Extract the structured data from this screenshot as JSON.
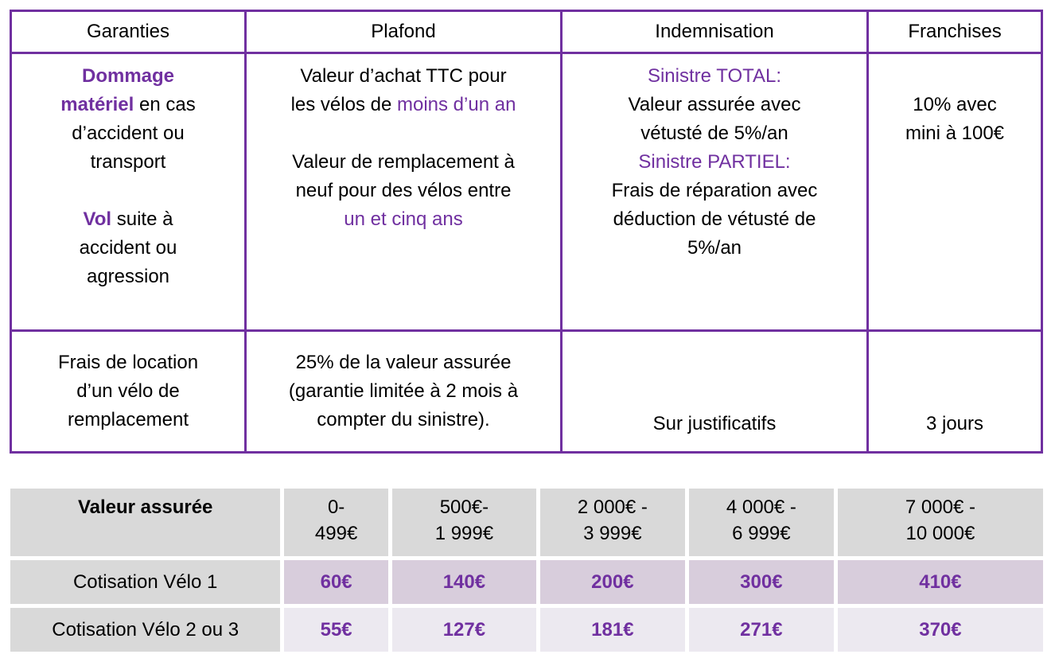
{
  "colors": {
    "purple": "#7030A0",
    "cell_gray": "#D9D9D9",
    "row1_lavender": "#D8CDDC",
    "row2_lavender": "#ECE9F0"
  },
  "guarantee_table": {
    "headers": [
      "Garanties",
      "Plafond",
      "Indemnisation",
      "Franchises"
    ],
    "coverage_row": {
      "garanties": [
        {
          "t": "Dommage",
          "c": "purple",
          "b": true
        },
        {
          "br": 1
        },
        {
          "t": "matériel",
          "c": "purple",
          "b": true
        },
        {
          "t": " en cas"
        },
        {
          "br": 1
        },
        {
          "t": "d’accident ou"
        },
        {
          "br": 1
        },
        {
          "t": "transport"
        },
        {
          "br": 2
        },
        {
          "t": "Vol",
          "c": "purple",
          "b": true
        },
        {
          "t": " suite à"
        },
        {
          "br": 1
        },
        {
          "t": "accident ou"
        },
        {
          "br": 1
        },
        {
          "t": "agression"
        }
      ],
      "plafond": [
        {
          "t": "Valeur d’achat TTC pour"
        },
        {
          "br": 1
        },
        {
          "t": "les vélos de "
        },
        {
          "t": "moins d’un an",
          "c": "purple"
        },
        {
          "br": 2
        },
        {
          "t": "Valeur de remplacement à"
        },
        {
          "br": 1
        },
        {
          "t": "neuf pour des vélos entre"
        },
        {
          "br": 1
        },
        {
          "t": "un et cinq ans",
          "c": "purple"
        }
      ],
      "indemnisation": [
        {
          "t": "Sinistre TOTAL:",
          "c": "purple"
        },
        {
          "br": 1
        },
        {
          "t": "Valeur assurée avec"
        },
        {
          "br": 1
        },
        {
          "t": "vétusté de 5%/an"
        },
        {
          "br": 1
        },
        {
          "t": "Sinistre PARTIEL:",
          "c": "purple"
        },
        {
          "br": 1
        },
        {
          "t": "Frais de réparation avec"
        },
        {
          "br": 1
        },
        {
          "t": "déduction de vétusté de"
        },
        {
          "br": 1
        },
        {
          "t": "5%/an"
        }
      ],
      "franchises": "10% avec\nmini à 100€"
    },
    "rental_row": {
      "garanties": "Frais de location\nd’un vélo de\nremplacement",
      "plafond": "25% de la valeur assurée\n(garantie limitée à 2 mois à\ncompter du sinistre).",
      "indemnisation": "Sur justificatifs",
      "franchises": "3 jours"
    }
  },
  "pricing_table": {
    "header_label": "Valeur assurée",
    "ranges": [
      "0-\n499€",
      "500€-\n1 999€",
      "2 000€ -\n3 999€",
      "4 000€ -\n6 999€",
      "7 000€ -\n10 000€"
    ],
    "rows": [
      {
        "label": "Cotisation Vélo 1",
        "values": [
          "60€",
          "140€",
          "200€",
          "300€",
          "410€"
        ]
      },
      {
        "label": "Cotisation Vélo 2 ou 3",
        "values": [
          "55€",
          "127€",
          "181€",
          "271€",
          "370€"
        ]
      }
    ]
  }
}
